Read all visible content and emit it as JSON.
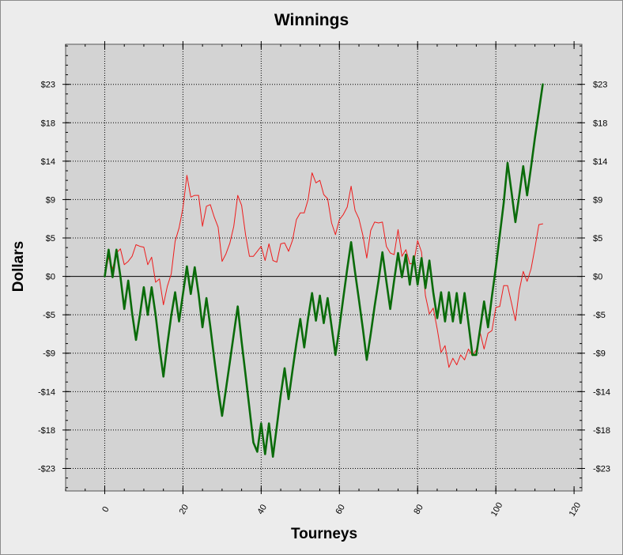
{
  "chart_data": {
    "type": "line",
    "title": "Winnings",
    "xlabel": "Tourneys",
    "ylabel": "Dollars",
    "xlim": [
      -10,
      122
    ],
    "ylim": [
      -25.7,
      27.8
    ],
    "xticks": [
      0,
      20,
      40,
      60,
      80,
      100,
      120
    ],
    "yticks": [
      {
        "value": 23,
        "label": "$23"
      },
      {
        "value": 18.4,
        "label": "$18"
      },
      {
        "value": 13.8,
        "label": "$14"
      },
      {
        "value": 9.2,
        "label": "$9"
      },
      {
        "value": 4.6,
        "label": "$5"
      },
      {
        "value": 0,
        "label": "$0"
      },
      {
        "value": -4.6,
        "label": "-$5"
      },
      {
        "value": -9.2,
        "label": "-$9"
      },
      {
        "value": -13.8,
        "label": "-$14"
      },
      {
        "value": -18.4,
        "label": "-$18"
      },
      {
        "value": -23,
        "label": "-$23"
      }
    ],
    "grid": true,
    "background": "#d3d3d3",
    "series": [
      {
        "color": "#ee1c1c",
        "width": 1,
        "x": [
          0,
          1,
          2,
          3,
          4,
          5,
          6,
          7,
          8,
          9,
          10,
          11,
          12,
          13,
          14,
          15,
          16,
          17,
          18,
          19,
          20,
          21,
          22,
          23,
          24,
          25,
          26,
          27,
          28,
          29,
          30,
          31,
          32,
          33,
          34,
          35,
          36,
          37,
          38,
          39,
          40,
          41,
          42,
          43,
          44,
          45,
          46,
          47,
          48,
          49,
          50,
          51,
          52,
          53,
          54,
          55,
          56,
          57,
          58,
          59,
          60,
          61,
          62,
          63,
          64,
          65,
          66,
          67,
          68,
          69,
          70,
          71,
          72,
          73,
          74,
          75,
          76,
          77,
          78,
          79,
          80,
          81,
          82,
          83,
          84,
          85,
          86,
          87,
          88,
          89,
          90,
          91,
          92,
          93,
          94,
          95,
          96,
          97,
          98,
          99,
          100,
          101,
          102,
          103,
          104,
          105,
          106,
          107,
          108,
          109,
          110,
          111,
          112
        ],
        "values": [
          0,
          2.3,
          0.9,
          2.8,
          3.3,
          1.4,
          1.8,
          2.4,
          3.8,
          3.6,
          3.5,
          1.4,
          2.3,
          -0.7,
          -0.3,
          -3.4,
          -1.2,
          0.3,
          4.2,
          5.8,
          8.2,
          12.1,
          9.5,
          9.7,
          9.7,
          6.0,
          8.4,
          8.6,
          7.1,
          5.9,
          1.8,
          2.7,
          4.0,
          6.0,
          9.7,
          8.5,
          5.0,
          2.4,
          2.4,
          3.0,
          3.6,
          1.9,
          3.9,
          1.9,
          1.7,
          3.9,
          4.0,
          3.0,
          4.3,
          6.8,
          7.6,
          7.6,
          9.2,
          12.4,
          11.2,
          11.5,
          9.8,
          9.3,
          6.4,
          5.0,
          6.8,
          7.4,
          8.3,
          10.8,
          7.9,
          6.9,
          4.9,
          2.2,
          5.5,
          6.5,
          6.4,
          6.5,
          3.6,
          2.8,
          2.6,
          5.6,
          2.4,
          3.2,
          1.5,
          1.6,
          4.3,
          2.9,
          -2.3,
          -4.5,
          -3.8,
          -6.3,
          -9.1,
          -8.3,
          -10.9,
          -9.8,
          -10.6,
          -9.4,
          -10.0,
          -8.7,
          -9.5,
          -8.8,
          -6.8,
          -8.7,
          -6.8,
          -6.5,
          -3.7,
          -3.6,
          -1.1,
          -1.1,
          -3.2,
          -5.3,
          -1.7,
          0.6,
          -0.6,
          0.9,
          3.4,
          6.2,
          6.3
        ]
      },
      {
        "color": "#0a6b0a",
        "width": 2.6,
        "x": [
          0,
          1,
          2,
          3,
          4,
          5,
          6,
          7,
          8,
          9,
          10,
          11,
          12,
          13,
          14,
          15,
          16,
          17,
          18,
          19,
          20,
          21,
          22,
          23,
          24,
          25,
          26,
          27,
          28,
          29,
          30,
          31,
          32,
          33,
          34,
          35,
          36,
          37,
          38,
          39,
          40,
          41,
          42,
          43,
          44,
          45,
          46,
          47,
          48,
          49,
          50,
          51,
          52,
          53,
          54,
          55,
          56,
          57,
          58,
          59,
          60,
          61,
          62,
          63,
          64,
          65,
          66,
          67,
          68,
          69,
          70,
          71,
          72,
          73,
          74,
          75,
          76,
          77,
          78,
          79,
          80,
          81,
          82,
          83,
          84,
          85,
          86,
          87,
          88,
          89,
          90,
          91,
          92,
          93,
          94,
          95,
          96,
          97,
          98,
          99,
          100,
          101,
          102,
          103,
          104,
          105,
          106,
          107,
          108,
          109,
          110,
          111,
          112
        ],
        "values": [
          0,
          3.2,
          -0.1,
          3.2,
          0,
          -3.9,
          -0.5,
          -4.4,
          -7.6,
          -4.6,
          -1.3,
          -4.6,
          -1.3,
          -4.6,
          -8.5,
          -12.0,
          -8.2,
          -4.7,
          -1.9,
          -5.4,
          -2.1,
          1.2,
          -2.1,
          1.1,
          -2.1,
          -6.1,
          -2.6,
          -6.0,
          -9.9,
          -13.5,
          -16.7,
          -13.5,
          -10.2,
          -6.9,
          -3.6,
          -7.8,
          -11.8,
          -15.8,
          -19.9,
          -21.0,
          -17.6,
          -21.3,
          -17.6,
          -21.6,
          -18.0,
          -14.2,
          -11.0,
          -14.7,
          -11.3,
          -8.0,
          -5.1,
          -8.5,
          -5.0,
          -2.0,
          -5.3,
          -2.3,
          -5.6,
          -2.6,
          -6.0,
          -9.4,
          -6.1,
          -2.6,
          0.9,
          4.1,
          0.5,
          -2.8,
          -6.3,
          -10.0,
          -6.9,
          -3.6,
          -0.5,
          2.9,
          -0.6,
          -3.9,
          -0.5,
          2.8,
          -0.1,
          2.6,
          -1.0,
          2.4,
          -1.0,
          2.2,
          -1.4,
          1.9,
          -1.9,
          -5.0,
          -1.9,
          -5.4,
          -1.9,
          -5.4,
          -2.0,
          -5.6,
          -2.0,
          -5.6,
          -9.4,
          -9.4,
          -6.2,
          -3.0,
          -6.1,
          -2.4,
          1.1,
          4.9,
          8.8,
          13.6,
          10.1,
          6.5,
          9.7,
          13.2,
          9.7,
          13.1,
          16.6,
          19.8,
          23.0
        ]
      }
    ]
  }
}
